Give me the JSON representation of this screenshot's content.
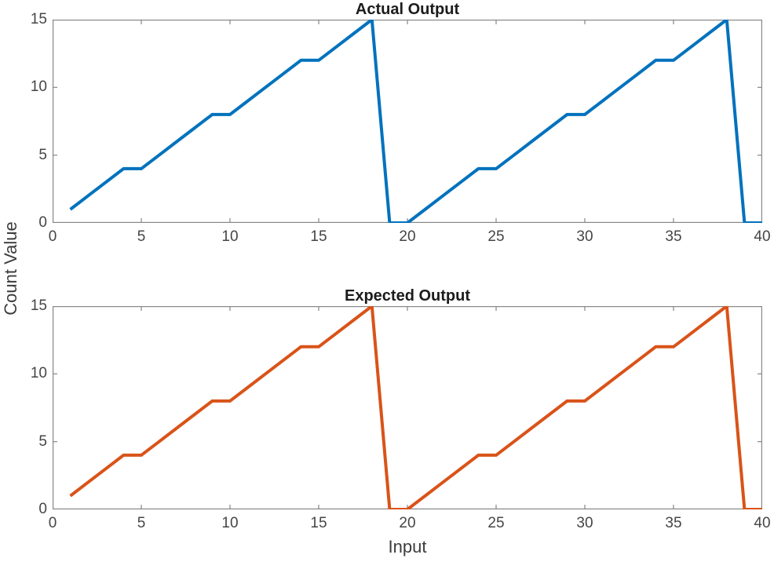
{
  "figure": {
    "background": "#ffffff",
    "xlabel": "Input",
    "ylabel": "Count Value",
    "axis_color": "#878787",
    "tick_text_color": "#454545",
    "title_color": "#1c1c1c"
  },
  "chart_data": [
    {
      "type": "line",
      "title": "Actual Output",
      "line_color": "#0072BD",
      "line_width": 4,
      "grid": false,
      "legend": null,
      "xlim": [
        0,
        40
      ],
      "ylim": [
        0,
        15
      ],
      "xticks": [
        0,
        5,
        10,
        15,
        20,
        25,
        30,
        35,
        40
      ],
      "yticks": [
        0,
        5,
        10,
        15
      ],
      "x": [
        1,
        2,
        3,
        4,
        5,
        6,
        7,
        8,
        9,
        10,
        11,
        12,
        13,
        14,
        15,
        16,
        17,
        18,
        19,
        20,
        21,
        22,
        23,
        24,
        25,
        26,
        27,
        28,
        29,
        30,
        31,
        32,
        33,
        34,
        35,
        36,
        37,
        38,
        39,
        40
      ],
      "y": [
        1,
        2,
        3,
        4,
        4,
        5,
        6,
        7,
        8,
        8,
        9,
        10,
        11,
        12,
        12,
        13,
        14,
        15,
        0,
        0,
        1,
        2,
        3,
        4,
        4,
        5,
        6,
        7,
        8,
        8,
        9,
        10,
        11,
        12,
        12,
        13,
        14,
        15,
        0,
        0
      ]
    },
    {
      "type": "line",
      "title": "Expected Output",
      "line_color": "#D95319",
      "line_width": 4,
      "grid": false,
      "legend": null,
      "xlim": [
        0,
        40
      ],
      "ylim": [
        0,
        15
      ],
      "xticks": [
        0,
        5,
        10,
        15,
        20,
        25,
        30,
        35,
        40
      ],
      "yticks": [
        0,
        5,
        10,
        15
      ],
      "x": [
        1,
        2,
        3,
        4,
        5,
        6,
        7,
        8,
        9,
        10,
        11,
        12,
        13,
        14,
        15,
        16,
        17,
        18,
        19,
        20,
        21,
        22,
        23,
        24,
        25,
        26,
        27,
        28,
        29,
        30,
        31,
        32,
        33,
        34,
        35,
        36,
        37,
        38,
        39,
        40
      ],
      "y": [
        1,
        2,
        3,
        4,
        4,
        5,
        6,
        7,
        8,
        8,
        9,
        10,
        11,
        12,
        12,
        13,
        14,
        15,
        0,
        0,
        1,
        2,
        3,
        4,
        4,
        5,
        6,
        7,
        8,
        8,
        9,
        10,
        11,
        12,
        12,
        13,
        14,
        15,
        0,
        0
      ]
    }
  ]
}
